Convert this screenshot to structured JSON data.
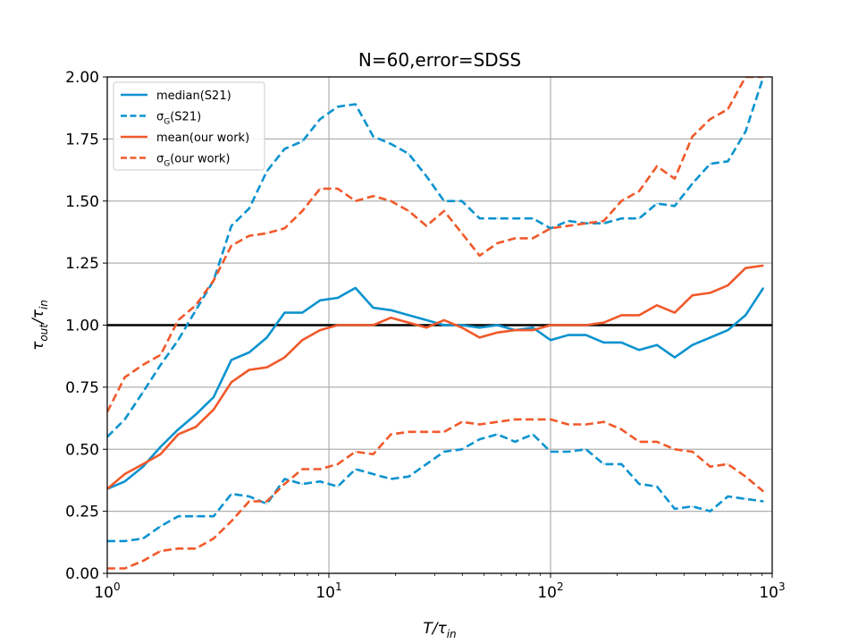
{
  "chart_data": {
    "type": "line",
    "title": "N=60,error=SDSS",
    "xlabel": "T/τ_in",
    "ylabel": "τ_out/τ_in",
    "x_scale": "log",
    "xlim": [
      1,
      1000
    ],
    "ylim": [
      0,
      2.0
    ],
    "grid": true,
    "legend_position": "top-left",
    "x_ticks": [
      {
        "value": 1,
        "base": "10",
        "exp": "0"
      },
      {
        "value": 10,
        "base": "10",
        "exp": "1"
      },
      {
        "value": 100,
        "base": "10",
        "exp": "2"
      },
      {
        "value": 1000,
        "base": "10",
        "exp": "3"
      }
    ],
    "y_ticks": [
      "0.00",
      "0.25",
      "0.50",
      "0.75",
      "1.00",
      "1.25",
      "1.50",
      "1.75",
      "2.00"
    ],
    "reference_line": {
      "y": 1.0,
      "color": "#000000"
    },
    "x": [
      1.0,
      1.2,
      1.45,
      1.74,
      2.09,
      2.51,
      3.02,
      3.63,
      4.37,
      5.25,
      6.31,
      7.59,
      9.12,
      10.96,
      13.18,
      15.85,
      19.05,
      22.91,
      27.54,
      33.11,
      39.81,
      47.86,
      57.54,
      69.18,
      83.18,
      100.0,
      120.2,
      144.5,
      173.8,
      208.9,
      251.2,
      302.0,
      363.1,
      436.5,
      524.8,
      631.0,
      758.6,
      912.0
    ],
    "series": [
      {
        "name": "median(S21)",
        "color": "#0c93cf",
        "dash": "solid",
        "values": [
          0.34,
          0.37,
          0.43,
          0.51,
          0.58,
          0.64,
          0.71,
          0.86,
          0.89,
          0.95,
          1.05,
          1.05,
          1.1,
          1.11,
          1.15,
          1.07,
          1.06,
          1.04,
          1.02,
          1.0,
          1.0,
          0.99,
          1.0,
          0.98,
          0.99,
          0.94,
          0.96,
          0.96,
          0.93,
          0.93,
          0.9,
          0.92,
          0.87,
          0.92,
          0.95,
          0.98,
          1.04,
          1.15
        ]
      },
      {
        "name": "σ_G(S21) upper",
        "legend_label": "σ_G(S21)",
        "color": "#0c93cf",
        "dash": "dashed",
        "values": [
          0.55,
          0.62,
          0.73,
          0.84,
          0.94,
          1.06,
          1.18,
          1.4,
          1.47,
          1.62,
          1.71,
          1.74,
          1.83,
          1.88,
          1.89,
          1.76,
          1.73,
          1.69,
          1.6,
          1.5,
          1.5,
          1.43,
          1.43,
          1.43,
          1.43,
          1.39,
          1.42,
          1.41,
          1.41,
          1.43,
          1.43,
          1.49,
          1.48,
          1.57,
          1.65,
          1.66,
          1.78,
          2.0
        ]
      },
      {
        "name": "σ_G(S21) lower",
        "color": "#0c93cf",
        "dash": "dashed",
        "values": [
          0.13,
          0.13,
          0.14,
          0.19,
          0.23,
          0.23,
          0.23,
          0.32,
          0.31,
          0.28,
          0.38,
          0.36,
          0.37,
          0.35,
          0.42,
          0.4,
          0.38,
          0.39,
          0.44,
          0.49,
          0.5,
          0.54,
          0.56,
          0.53,
          0.56,
          0.49,
          0.49,
          0.5,
          0.44,
          0.44,
          0.36,
          0.35,
          0.26,
          0.27,
          0.25,
          0.31,
          0.3,
          0.29
        ]
      },
      {
        "name": "mean(our work)",
        "color": "#f0592a",
        "dash": "solid",
        "values": [
          0.34,
          0.4,
          0.44,
          0.48,
          0.56,
          0.59,
          0.66,
          0.77,
          0.82,
          0.83,
          0.87,
          0.94,
          0.98,
          1.0,
          1.0,
          1.0,
          1.03,
          1.01,
          0.99,
          1.02,
          0.99,
          0.95,
          0.97,
          0.98,
          0.98,
          1.0,
          1.0,
          1.0,
          1.01,
          1.04,
          1.04,
          1.08,
          1.05,
          1.12,
          1.13,
          1.16,
          1.23,
          1.24
        ]
      },
      {
        "name": "σ_G(our work) upper",
        "legend_label": "σ_G(our work)",
        "color": "#f0592a",
        "dash": "dashed",
        "values": [
          0.65,
          0.79,
          0.84,
          0.88,
          1.02,
          1.08,
          1.18,
          1.32,
          1.36,
          1.37,
          1.39,
          1.46,
          1.55,
          1.55,
          1.5,
          1.52,
          1.5,
          1.46,
          1.4,
          1.46,
          1.37,
          1.28,
          1.33,
          1.35,
          1.35,
          1.39,
          1.4,
          1.41,
          1.42,
          1.5,
          1.54,
          1.64,
          1.59,
          1.76,
          1.83,
          1.87,
          2.0,
          2.0
        ]
      },
      {
        "name": "σ_G(our work) lower",
        "color": "#f0592a",
        "dash": "dashed",
        "values": [
          0.02,
          0.02,
          0.05,
          0.09,
          0.1,
          0.1,
          0.14,
          0.21,
          0.29,
          0.29,
          0.36,
          0.42,
          0.42,
          0.44,
          0.49,
          0.48,
          0.56,
          0.57,
          0.57,
          0.57,
          0.61,
          0.6,
          0.61,
          0.62,
          0.62,
          0.62,
          0.6,
          0.6,
          0.61,
          0.58,
          0.53,
          0.53,
          0.5,
          0.49,
          0.43,
          0.44,
          0.39,
          0.33
        ]
      }
    ],
    "legend": [
      {
        "label_main": "median(S21)",
        "label_sub": "",
        "label_tail": "",
        "color": "#0c93cf",
        "dash": "solid"
      },
      {
        "label_main": "σ",
        "label_sub": "G",
        "label_tail": "(S21)",
        "color": "#0c93cf",
        "dash": "dashed"
      },
      {
        "label_main": "mean(our work)",
        "label_sub": "",
        "label_tail": "",
        "color": "#f0592a",
        "dash": "solid"
      },
      {
        "label_main": "σ",
        "label_sub": "G",
        "label_tail": "(our work)",
        "color": "#f0592a",
        "dash": "dashed"
      }
    ]
  }
}
